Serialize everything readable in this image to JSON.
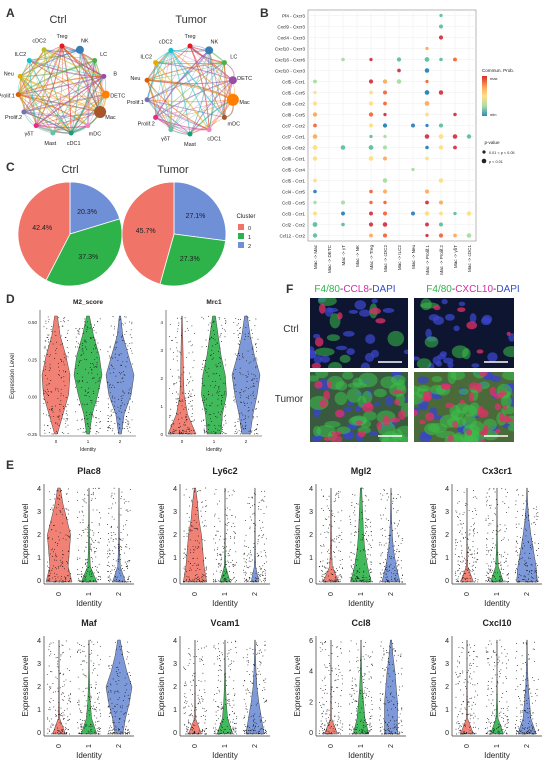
{
  "panels": {
    "a": "A",
    "b": "B",
    "c": "C",
    "d": "D",
    "e": "E",
    "f": "F"
  },
  "panelA": {
    "titles": [
      "Ctrl",
      "Tumor"
    ],
    "ctrl_nodes": [
      "Treg",
      "NK",
      "LC",
      "B",
      "DETC",
      "Mac",
      "mDC",
      "cDC1",
      "Mast",
      "γδT",
      "Prolif.2",
      "Prolif.1",
      "Neu",
      "ILC2",
      "cDC2"
    ],
    "tumor_nodes": [
      "Treg",
      "NK",
      "LC",
      "DETC",
      "Mac",
      "mDC",
      "cDC1",
      "Mast",
      "γδT",
      "Prolif.2",
      "Prolif.1",
      "Neu",
      "ILC2",
      "cDC2"
    ]
  },
  "panelB": {
    "rows": [
      "Pf4 - Cxcr3",
      "Cxcl9 - Cxcr3",
      "Cxcl4 - Cxcr3",
      "Cxcl10 - Cxcr3",
      "Cxcl16 - Cxcr6",
      "Cxcl10 - Cxcr3",
      "Ccl5 - Ccr1",
      "Ccl5 - Ccr5",
      "Ccl8 - Ccr2",
      "Ccl8 - Ccr5",
      "Ccl7 - Ccr2",
      "Ccl7 - Ccr1",
      "Ccl6 - Ccr2",
      "Ccl6 - Ccr1",
      "Ccl5 - Ccr4",
      "Ccl5 - Ccr1",
      "Ccl4 - Ccr5",
      "Ccl3 - Ccr5",
      "Ccl3 - Ccr1",
      "Ccl2 - Ccr2",
      "Ccl12 - Ccr2"
    ],
    "cols": [
      "Mac -> Mac",
      "Mac -> DETC",
      "Mac -> γT",
      "Mac -> NK",
      "Mac -> Treg",
      "Mac -> cDC2",
      "Mac -> ILC2",
      "Mac -> Neu",
      "Mac -> Prolif.1",
      "Mac -> Prolif.2",
      "Mac -> γδT",
      "Mac -> cDC1"
    ],
    "legend_title": "Commun. Prob.",
    "legend_max": "max",
    "legend_min": "min",
    "pvalue_title": "p-value",
    "pvalue_items": [
      "0.01 < p < 0.05",
      "p < 0.01"
    ],
    "colors": {
      "high": "#d73027",
      "mid": "#fee08b",
      "low": "#3288bd"
    }
  },
  "panelC": {
    "titles": [
      "Ctrl",
      "Tumor"
    ],
    "legend_title": "Cluster",
    "clusters": [
      "0",
      "1",
      "2"
    ],
    "colors": [
      "#f07467",
      "#2db34a",
      "#6f8fd6"
    ],
    "pies": [
      {
        "values": [
          42.4,
          37.3,
          20.3
        ],
        "labels": [
          "42.4%",
          "37.3%",
          "20.3%"
        ]
      },
      {
        "values": [
          45.7,
          27.3,
          27.1
        ],
        "labels": [
          "45.7%",
          "27.3%",
          "27.1%"
        ]
      }
    ]
  },
  "panelD": {
    "titles": [
      "M2_score",
      "Mrc1"
    ],
    "ylabel": "Expression Level",
    "xlabel": "Identity",
    "identities": [
      "0",
      "1",
      "2"
    ],
    "yticks_left": [
      "0.50",
      "0.25",
      "0.00",
      "-0.25"
    ],
    "yticks_right": [
      "4",
      "3",
      "2",
      "1",
      "0"
    ]
  },
  "panelE": {
    "genes_row1": [
      "Plac8",
      "Ly6c2",
      "Mgl2",
      "Cx3cr1"
    ],
    "genes_row2": [
      "Maf",
      "Vcam1",
      "Ccl8",
      "Cxcl10"
    ],
    "ylabel": "Expression Level",
    "xlabel": "Identity",
    "identities": [
      "0",
      "1",
      "2"
    ],
    "yticks": {
      "Plac8": [
        "4",
        "3",
        "2",
        "1",
        "0"
      ],
      "Ly6c2": [
        "4",
        "3",
        "2",
        "1",
        "0"
      ],
      "Mgl2": [
        "4",
        "3",
        "2",
        "1",
        "0"
      ],
      "Cx3cr1": [
        "4",
        "3",
        "2",
        "1",
        "0"
      ],
      "Maf": [
        "4",
        "3",
        "2",
        "1",
        "0"
      ],
      "Vcam1": [
        "4",
        "3",
        "2",
        "1",
        "0"
      ],
      "Ccl8": [
        "6",
        "4",
        "2",
        "0"
      ],
      "Cxcl10": [
        "4",
        "3",
        "2",
        "1",
        "0"
      ]
    }
  },
  "panelF": {
    "header1_parts": [
      "F4/80",
      "-",
      "CCL8",
      "-",
      "DAPI"
    ],
    "header2_parts": [
      "F4/80",
      "-",
      "CXCL10",
      "-",
      "DAPI"
    ],
    "rows": [
      "Ctrl",
      "Tumor"
    ]
  }
}
